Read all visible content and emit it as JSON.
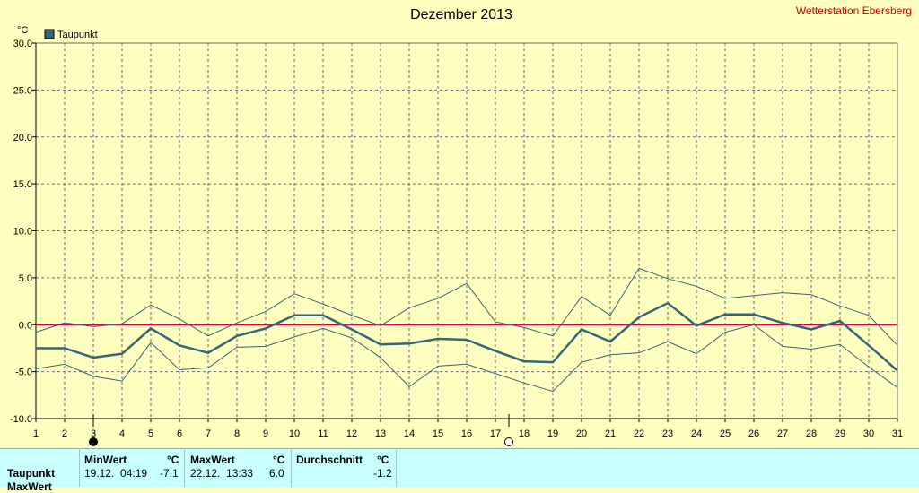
{
  "chart_data": {
    "type": "line",
    "title": "Dezember 2013",
    "station": "Wetterstation Ebersberg",
    "ylabel": "°C",
    "ylim": [
      -10,
      30
    ],
    "yticks": [
      "30.0",
      "25.0",
      "20.0",
      "15.0",
      "10.0",
      "5.0",
      "0.0",
      "-5.0",
      "-10.0"
    ],
    "x": [
      1,
      2,
      3,
      4,
      5,
      6,
      7,
      8,
      9,
      10,
      11,
      12,
      13,
      14,
      15,
      16,
      17,
      18,
      19,
      20,
      21,
      22,
      23,
      24,
      25,
      26,
      27,
      28,
      29,
      30,
      31
    ],
    "legend": "Taupunkt",
    "legend_placement": "top-left",
    "grid": true,
    "series": [
      {
        "name": "Taupunkt",
        "role": "mean",
        "color": "#336677",
        "values": [
          -2.5,
          -2.5,
          -3.5,
          -3.1,
          -0.4,
          -2.2,
          -3.0,
          -1.2,
          -0.4,
          1.0,
          1.0,
          -0.5,
          -2.1,
          -2.0,
          -1.5,
          -1.6,
          -2.8,
          -3.9,
          -4.0,
          -0.5,
          -1.8,
          0.8,
          2.3,
          -0.1,
          1.1,
          1.1,
          0.2,
          -0.5,
          0.4,
          -2.2,
          -4.9
        ]
      },
      {
        "role": "max",
        "color": "#336677",
        "values": [
          -0.8,
          0.2,
          -0.2,
          0.1,
          2.1,
          0.6,
          -1.2,
          0.2,
          1.4,
          3.3,
          2.2,
          1.0,
          -0.1,
          1.8,
          2.8,
          4.4,
          0.3,
          -0.3,
          -1.2,
          3.0,
          1.0,
          6.0,
          4.9,
          4.1,
          2.8,
          3.1,
          3.4,
          3.2,
          2.0,
          1.0,
          -2.2
        ]
      },
      {
        "role": "min",
        "color": "#336677",
        "values": [
          -4.7,
          -4.2,
          -5.5,
          -6.0,
          -1.9,
          -4.8,
          -4.6,
          -2.4,
          -2.3,
          -1.3,
          -0.4,
          -1.4,
          -3.5,
          -6.6,
          -4.4,
          -4.2,
          -5.2,
          -6.2,
          -7.1,
          -4.0,
          -3.2,
          -3.0,
          -1.8,
          -3.1,
          -0.8,
          0.0,
          -2.3,
          -2.6,
          -2.1,
          -4.5,
          -6.7
        ]
      }
    ],
    "reference_line": {
      "y": 0,
      "color": "#e0004c"
    }
  },
  "moon": {
    "new_moon_day": 3,
    "full_moon_day": 17
  },
  "table": {
    "row_label": "Taupunkt",
    "row_label2": "MaxWert",
    "min_header": "MinWert",
    "max_header": "MaxWert",
    "avg_header": "Durchschnitt",
    "unit": "°C",
    "min_time": "19.12.  04:19",
    "min_value": "-7.1",
    "max_time": "22.12.  13:33",
    "max_value": "6.0",
    "avg_value": "-1.2"
  }
}
